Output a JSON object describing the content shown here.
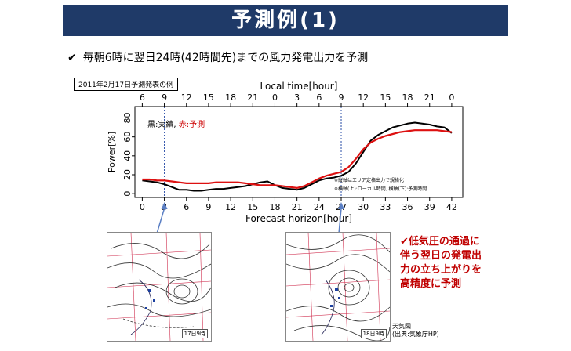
{
  "header": {
    "title": "予測例(1)"
  },
  "subtitle": {
    "check": "✔",
    "text": "毎朝6時に翌日24時(42時間先)までの風力発電出力を予測"
  },
  "date_label": "2011年2月17日予測発表の例",
  "legend": {
    "black": "黒:実績,",
    "red": "赤:予測"
  },
  "notes": [
    "※縦軸はエリア定格出力で規格化",
    "※横軸(上):ローカル時間, 横軸(下):予測時間"
  ],
  "callout": {
    "check": "✔",
    "lines": [
      "低気圧の通過に",
      "伴う翌日の発電出",
      "力の立ち上がりを",
      "高精度に予測"
    ]
  },
  "maps": [
    {
      "stamp": "17日9時"
    },
    {
      "stamp": "18日9時"
    }
  ],
  "source": {
    "title": "天気図",
    "credit": "(出典:気象庁HP)"
  },
  "chart_data": {
    "type": "line",
    "xlabel": "Forecast horizon[hour]",
    "x2label": "Local time[hour]",
    "ylabel": "Power[%]",
    "xlim": [
      -1,
      43.5
    ],
    "ylim": [
      -4,
      92
    ],
    "xticks": [
      0,
      3,
      6,
      9,
      12,
      15,
      18,
      21,
      24,
      27,
      30,
      33,
      36,
      39,
      42
    ],
    "x2ticks": [
      "6",
      "9",
      "12",
      "15",
      "18",
      "21",
      "0",
      "3",
      "6",
      "9",
      "12",
      "15",
      "18",
      "21",
      "0"
    ],
    "yticks": [
      0,
      20,
      40,
      60,
      80
    ],
    "dotted_lines_x": [
      3,
      27
    ],
    "colors": {
      "actual": "#000000",
      "forecast": "#dd1111",
      "dotted": "#2b4fa8",
      "arrow": "#5b7fc4"
    },
    "series": [
      {
        "name": "黒:実績",
        "color": "#000000",
        "x": [
          0,
          1,
          2,
          3,
          4,
          5,
          6,
          7,
          8,
          9,
          10,
          11,
          12,
          13,
          14,
          15,
          16,
          17,
          18,
          19,
          20,
          21,
          22,
          23,
          24,
          25,
          26,
          27,
          28,
          29,
          30,
          31,
          32,
          33,
          34,
          35,
          36,
          37,
          38,
          39,
          40,
          41,
          42
        ],
        "y": [
          14,
          13,
          12,
          10,
          7,
          4,
          4,
          3,
          3,
          4,
          5,
          5,
          6,
          7,
          8,
          10,
          12,
          13,
          9,
          6,
          5,
          4,
          6,
          10,
          14,
          16,
          17,
          19,
          23,
          32,
          44,
          56,
          62,
          66,
          70,
          72,
          74,
          75,
          74,
          73,
          71,
          70,
          64
        ]
      },
      {
        "name": "赤:予測",
        "color": "#dd1111",
        "x": [
          0,
          1,
          2,
          3,
          4,
          5,
          6,
          7,
          8,
          9,
          10,
          11,
          12,
          13,
          14,
          15,
          16,
          17,
          18,
          19,
          20,
          21,
          22,
          23,
          24,
          25,
          26,
          27,
          28,
          29,
          30,
          31,
          32,
          33,
          34,
          35,
          36,
          37,
          38,
          39,
          40,
          41,
          42
        ],
        "y": [
          15,
          15,
          14,
          14,
          13,
          12,
          11,
          11,
          11,
          11,
          12,
          12,
          12,
          12,
          11,
          10,
          9,
          9,
          9,
          8,
          7,
          6,
          8,
          12,
          16,
          19,
          21,
          23,
          28,
          37,
          47,
          54,
          58,
          61,
          63,
          65,
          66,
          67,
          67,
          67,
          67,
          66,
          65
        ]
      }
    ]
  }
}
